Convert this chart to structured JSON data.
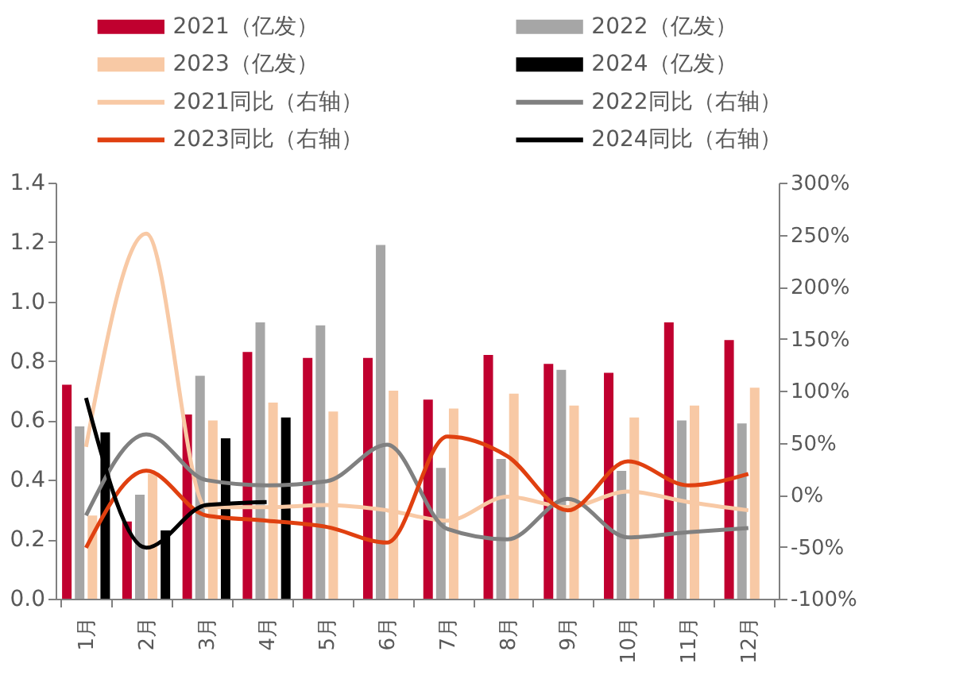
{
  "chart_data": {
    "type": "bar",
    "categories": [
      "1月",
      "2月",
      "3月",
      "4月",
      "5月",
      "6月",
      "7月",
      "8月",
      "9月",
      "10月",
      "11月",
      "12月"
    ],
    "series": [
      {
        "name": "2021（亿发）",
        "color": "#c0002f",
        "values": [
          0.72,
          0.26,
          0.62,
          0.83,
          0.81,
          0.81,
          0.67,
          0.82,
          0.79,
          0.76,
          0.93,
          0.87
        ]
      },
      {
        "name": "2022（亿发）",
        "color": "#a6a6a6",
        "values": [
          0.58,
          0.35,
          0.75,
          0.93,
          0.92,
          1.19,
          0.44,
          0.47,
          0.77,
          0.43,
          0.6,
          0.59
        ]
      },
      {
        "name": "2023（亿发）",
        "color": "#f8c9a5",
        "values": [
          0.28,
          0.42,
          0.6,
          0.66,
          0.63,
          0.7,
          0.64,
          0.69,
          0.65,
          0.61,
          0.65,
          0.71
        ]
      },
      {
        "name": "2024（亿发）",
        "color": "#000000",
        "values": [
          0.56,
          0.23,
          0.54,
          0.61,
          null,
          null,
          null,
          null,
          null,
          null,
          null,
          null
        ]
      },
      {
        "name": "2021同比（右轴）",
        "type": "line",
        "axis": "y2",
        "color": "#f8c9a5",
        "values": [
          46,
          251,
          -12,
          -12,
          -10,
          -15,
          -25,
          -2,
          -12,
          3,
          -7,
          -15
        ]
      },
      {
        "name": "2022同比（右轴）",
        "type": "line",
        "axis": "y2",
        "color": "#808080",
        "values": [
          -20,
          58,
          14,
          9,
          13,
          48,
          -33,
          -43,
          -4,
          -41,
          -36,
          -32
        ]
      },
      {
        "name": "2023同比（右轴）",
        "type": "line",
        "axis": "y2",
        "color": "#e04010",
        "values": [
          -51,
          23,
          -20,
          -25,
          -31,
          -46,
          56,
          37,
          -15,
          32,
          9,
          20
        ]
      },
      {
        "name": "2024同比（右轴）",
        "type": "line",
        "axis": "y2",
        "color": "#000000",
        "values": [
          93,
          -51,
          -10,
          -7,
          null,
          null,
          null,
          null,
          null,
          null,
          null,
          null
        ]
      }
    ],
    "ylim": [
      0,
      1.4
    ],
    "yticks": [
      {
        "value": 0,
        "label": "0.0"
      },
      0.2,
      0.4,
      0.6,
      0.8,
      {
        "value": 1,
        "label": "1.0"
      },
      1.2,
      1.4
    ],
    "y2lim": [
      -100,
      300
    ],
    "y2ticks": [
      {
        "value": -100,
        "label": "-100%"
      },
      {
        "value": -50,
        "label": "-50%"
      },
      {
        "value": 0,
        "label": "0%"
      },
      {
        "value": 50,
        "label": "50%"
      },
      {
        "value": 100,
        "label": "100%"
      },
      {
        "value": 150,
        "label": "150%"
      },
      {
        "value": 200,
        "label": "200%"
      },
      {
        "value": 250,
        "label": "250%"
      },
      {
        "value": 300,
        "label": "300%"
      }
    ],
    "grid": false,
    "legend": "top"
  }
}
